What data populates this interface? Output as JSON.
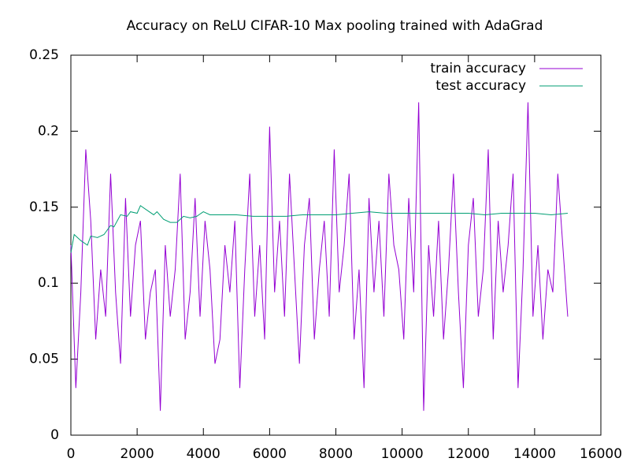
{
  "chart_data": {
    "type": "line",
    "title": "Accuracy on ReLU CIFAR-10 Max pooling trained with AdaGrad",
    "xlim": [
      0,
      16000
    ],
    "xticks": [
      0,
      2000,
      4000,
      6000,
      8000,
      10000,
      12000,
      14000,
      16000
    ],
    "ylim": [
      0,
      0.25
    ],
    "yticks": [
      0,
      0.05,
      0.1,
      0.15,
      0.2,
      0.25
    ],
    "legend": "top-right",
    "series": [
      {
        "name": "train accuracy",
        "color": "#9400d3",
        "x": [
          0,
          150,
          300,
          450,
          600,
          750,
          900,
          1050,
          1200,
          1350,
          1500,
          1650,
          1800,
          1950,
          2100,
          2250,
          2400,
          2550,
          2700,
          2850,
          3000,
          3150,
          3300,
          3450,
          3600,
          3750,
          3900,
          4050,
          4200,
          4350,
          4500,
          4650,
          4800,
          4950,
          5100,
          5250,
          5400,
          5550,
          5700,
          5850,
          6000,
          6150,
          6300,
          6450,
          6600,
          6750,
          6900,
          7050,
          7200,
          7350,
          7500,
          7650,
          7800,
          7950,
          8100,
          8250,
          8400,
          8550,
          8700,
          8850,
          9000,
          9150,
          9300,
          9450,
          9600,
          9750,
          9900,
          10050,
          10200,
          10350,
          10500,
          10650,
          10800,
          10950,
          11100,
          11250,
          11400,
          11550,
          11700,
          11850,
          12000,
          12150,
          12300,
          12450,
          12600,
          12750,
          12900,
          13050,
          13200,
          13350,
          13500,
          13650,
          13800,
          13950,
          14100,
          14250,
          14400,
          14550,
          14700,
          14850,
          15000
        ],
        "values": [
          0.125,
          0.031,
          0.094,
          0.188,
          0.141,
          0.063,
          0.109,
          0.078,
          0.172,
          0.094,
          0.047,
          0.156,
          0.078,
          0.125,
          0.141,
          0.063,
          0.094,
          0.109,
          0.016,
          0.125,
          0.078,
          0.109,
          0.172,
          0.063,
          0.094,
          0.156,
          0.078,
          0.141,
          0.109,
          0.047,
          0.063,
          0.125,
          0.094,
          0.141,
          0.031,
          0.109,
          0.172,
          0.078,
          0.125,
          0.063,
          0.203,
          0.094,
          0.141,
          0.078,
          0.172,
          0.109,
          0.047,
          0.125,
          0.156,
          0.063,
          0.109,
          0.141,
          0.078,
          0.188,
          0.094,
          0.125,
          0.172,
          0.063,
          0.109,
          0.031,
          0.156,
          0.094,
          0.141,
          0.078,
          0.172,
          0.125,
          0.109,
          0.063,
          0.156,
          0.094,
          0.219,
          0.016,
          0.125,
          0.078,
          0.141,
          0.063,
          0.109,
          0.172,
          0.094,
          0.031,
          0.125,
          0.156,
          0.078,
          0.109,
          0.188,
          0.063,
          0.141,
          0.094,
          0.125,
          0.172,
          0.031,
          0.109,
          0.219,
          0.078,
          0.125,
          0.063,
          0.109,
          0.094,
          0.172,
          0.125,
          0.078
        ]
      },
      {
        "name": "test accuracy",
        "color": "#009e73",
        "x": [
          0,
          100,
          300,
          500,
          600,
          800,
          1000,
          1200,
          1300,
          1500,
          1700,
          1800,
          2000,
          2100,
          2300,
          2500,
          2600,
          2800,
          3000,
          3200,
          3400,
          3600,
          3800,
          4000,
          4200,
          4500,
          5000,
          5500,
          6000,
          6500,
          7000,
          7500,
          8000,
          8500,
          9000,
          9500,
          10000,
          10500,
          11000,
          11500,
          12000,
          12500,
          13000,
          13500,
          14000,
          14500,
          15000
        ],
        "values": [
          0.12,
          0.132,
          0.128,
          0.125,
          0.131,
          0.13,
          0.132,
          0.138,
          0.137,
          0.145,
          0.144,
          0.147,
          0.146,
          0.151,
          0.148,
          0.145,
          0.147,
          0.142,
          0.14,
          0.14,
          0.144,
          0.143,
          0.144,
          0.147,
          0.145,
          0.145,
          0.145,
          0.144,
          0.144,
          0.144,
          0.145,
          0.145,
          0.145,
          0.146,
          0.147,
          0.146,
          0.146,
          0.146,
          0.146,
          0.146,
          0.146,
          0.145,
          0.146,
          0.146,
          0.146,
          0.145,
          0.146
        ]
      }
    ]
  }
}
